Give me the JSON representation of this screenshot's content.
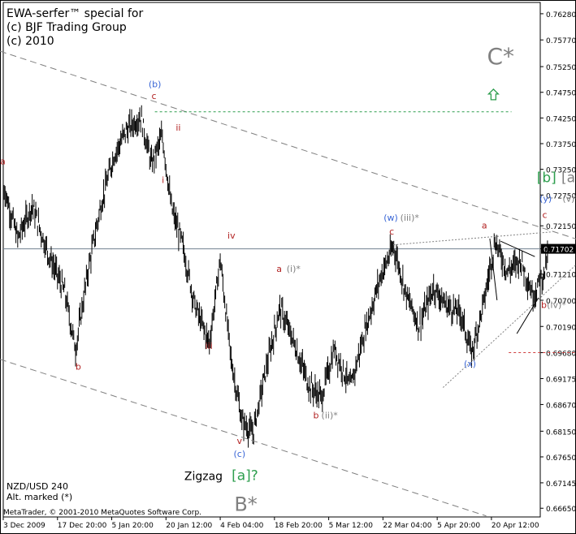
{
  "header": {
    "line1": "EWA-serfer™ special for",
    "line2": "(c) BJF Trading Group",
    "line3": "(c) 2010"
  },
  "footer": {
    "symbol": "NZD/USD 240",
    "alt": "Alt. marked (*)",
    "copyright": "MetaTrader, © 2001-2010 MetaQuotes Software Corp."
  },
  "colors": {
    "red": "#b22222",
    "blue": "#3a66d6",
    "green": "#2e9e4e",
    "gray": "#808080",
    "price": "#000000"
  },
  "chart_data": {
    "type": "line",
    "price_label": "0.71702",
    "last_price": 0.71702,
    "ylim": [
      0.6648,
      0.765
    ],
    "y_ticks": [
      "0.76280",
      "0.75770",
      "0.75250",
      "0.74750",
      "0.74250",
      "0.73750",
      "0.73250",
      "0.72750",
      "0.72150",
      "0.71702",
      "0.71210",
      "0.70700",
      "0.70190",
      "0.69680",
      "0.69175",
      "0.68670",
      "0.68150",
      "0.67650",
      "0.67145",
      "0.66650"
    ],
    "x_ticks": [
      "3 Dec 2009",
      "17 Dec 20:00",
      "5 Jan 20:00",
      "20 Jan 12:00",
      "4 Feb 04:00",
      "18 Feb 20:00",
      "5 Mar 12:00",
      "22 Mar 04:00",
      "5 Apr 20:00",
      "20 Apr 12:00"
    ],
    "x_tick_index": [
      0,
      60,
      120,
      180,
      240,
      300,
      360,
      420,
      480,
      540
    ],
    "n_bars": 595,
    "key_points": [
      [
        0,
        0.7295
      ],
      [
        16,
        0.719
      ],
      [
        32,
        0.7255
      ],
      [
        50,
        0.716
      ],
      [
        68,
        0.7085
      ],
      [
        80,
        0.6975
      ],
      [
        94,
        0.713
      ],
      [
        108,
        0.7255
      ],
      [
        122,
        0.735
      ],
      [
        136,
        0.74
      ],
      [
        152,
        0.7428
      ],
      [
        164,
        0.7335
      ],
      [
        176,
        0.739
      ],
      [
        186,
        0.725
      ],
      [
        198,
        0.718
      ],
      [
        212,
        0.706
      ],
      [
        228,
        0.6985
      ],
      [
        240,
        0.715
      ],
      [
        252,
        0.6955
      ],
      [
        264,
        0.6835
      ],
      [
        276,
        0.681
      ],
      [
        290,
        0.693
      ],
      [
        306,
        0.7055
      ],
      [
        322,
        0.6985
      ],
      [
        338,
        0.6905
      ],
      [
        352,
        0.688
      ],
      [
        366,
        0.6975
      ],
      [
        384,
        0.69
      ],
      [
        400,
        0.701
      ],
      [
        418,
        0.712
      ],
      [
        432,
        0.7175
      ],
      [
        446,
        0.708
      ],
      [
        460,
        0.702
      ],
      [
        476,
        0.7095
      ],
      [
        490,
        0.706
      ],
      [
        506,
        0.7045
      ],
      [
        518,
        0.6965
      ],
      [
        532,
        0.707
      ],
      [
        544,
        0.7185
      ],
      [
        558,
        0.7125
      ],
      [
        572,
        0.715
      ],
      [
        586,
        0.708
      ],
      [
        598,
        0.712
      ],
      [
        604,
        0.717
      ]
    ],
    "lines": [
      {
        "name": "upper-channel",
        "style": "dashed",
        "color": "#808080",
        "x1": 0,
        "y1": 0.7555,
        "x2": 665,
        "y2": 0.7175
      },
      {
        "name": "lower-channel",
        "style": "dashed",
        "color": "#808080",
        "x1": 0,
        "y1": 0.6955,
        "x2": 540,
        "y2": 0.665
      },
      {
        "name": "resistance-green",
        "style": "dashed",
        "color": "#2e9e4e",
        "x1": 172,
        "y1": 0.7437,
        "x2": 568,
        "y2": 0.7437
      },
      {
        "name": "support-red",
        "style": "dashed",
        "color": "#d04040",
        "x1": 565,
        "y1": 0.6968,
        "x2": 655,
        "y2": 0.6968
      },
      {
        "name": "triangle-top",
        "style": "dotted",
        "color": "#808080",
        "x1": 437,
        "y1": 0.7178,
        "x2": 612,
        "y2": 0.7203
      },
      {
        "name": "triangle-bottom",
        "style": "dotted",
        "color": "#808080",
        "x1": 492,
        "y1": 0.69,
        "x2": 665,
        "y2": 0.718
      },
      {
        "name": "wedge-a",
        "style": "solid",
        "color": "#000000",
        "x1": 556,
        "y1": 0.7185,
        "x2": 594,
        "y2": 0.7155
      },
      {
        "name": "wedge-b",
        "style": "solid",
        "color": "#000000",
        "x1": 544,
        "y1": 0.719,
        "x2": 552,
        "y2": 0.707
      },
      {
        "name": "wedge-c",
        "style": "solid",
        "color": "#000000",
        "x1": 574,
        "y1": 0.7005,
        "x2": 598,
        "y2": 0.7075
      }
    ],
    "annotations": [
      {
        "t": "a",
        "color": "red",
        "x": 3,
        "y": 0.7335,
        "size": 11
      },
      {
        "t": "b",
        "color": "red",
        "x": 87,
        "y": 0.6935,
        "size": 11
      },
      {
        "t": "(b)",
        "color": "blue",
        "x": 172,
        "y": 0.7485,
        "size": 11
      },
      {
        "t": "c",
        "color": "red",
        "x": 171,
        "y": 0.7462,
        "size": 11
      },
      {
        "t": "ii",
        "color": "red",
        "x": 198,
        "y": 0.74,
        "size": 11
      },
      {
        "t": "i",
        "color": "red",
        "x": 181,
        "y": 0.7298,
        "size": 11
      },
      {
        "t": "iv",
        "color": "red",
        "x": 257,
        "y": 0.719,
        "size": 11
      },
      {
        "t": "iii",
        "color": "red",
        "x": 232,
        "y": 0.6975,
        "size": 11
      },
      {
        "t": "v",
        "color": "red",
        "x": 266,
        "y": 0.679,
        "size": 11
      },
      {
        "t": "(c)",
        "color": "blue",
        "x": 266,
        "y": 0.6765,
        "size": 11
      },
      {
        "t": "a",
        "color": "red",
        "x": 310,
        "y": 0.7125,
        "size": 11
      },
      {
        "t": "(i)*",
        "color": "gray",
        "x": 326,
        "y": 0.7125,
        "size": 11
      },
      {
        "t": "b",
        "color": "red",
        "x": 351,
        "y": 0.684,
        "size": 11
      },
      {
        "t": "(ii)*",
        "color": "gray",
        "x": 366,
        "y": 0.684,
        "size": 11
      },
      {
        "t": "(w)",
        "color": "blue",
        "x": 434,
        "y": 0.7225,
        "size": 11
      },
      {
        "t": "(iii)*",
        "color": "gray",
        "x": 455,
        "y": 0.7225,
        "size": 11
      },
      {
        "t": "c",
        "color": "red",
        "x": 435,
        "y": 0.7198,
        "size": 11
      },
      {
        "t": "a",
        "color": "red",
        "x": 538,
        "y": 0.721,
        "size": 11
      },
      {
        "t": "(y)",
        "color": "blue",
        "x": 606,
        "y": 0.7262,
        "size": 11
      },
      {
        "t": "(v)*",
        "color": "gray",
        "x": 634,
        "y": 0.7262,
        "size": 11
      },
      {
        "t": "c",
        "color": "red",
        "x": 605,
        "y": 0.723,
        "size": 11
      },
      {
        "t": "b",
        "color": "red",
        "x": 604,
        "y": 0.7055,
        "size": 11
      },
      {
        "t": "(iv)*",
        "color": "gray",
        "x": 618,
        "y": 0.7055,
        "size": 11
      },
      {
        "t": "(x)",
        "color": "blue",
        "x": 522,
        "y": 0.694,
        "size": 11
      },
      {
        "t": "C*",
        "color": "gray",
        "x": 556,
        "y": 0.753,
        "size": 28
      },
      {
        "t": "[b]",
        "color": "green",
        "x": 607,
        "y": 0.73,
        "size": 17
      },
      {
        "t": "[a]*",
        "color": "gray",
        "x": 638,
        "y": 0.73,
        "size": 17
      },
      {
        "t": "Zigzag",
        "color": "black",
        "x": 226,
        "y": 0.672,
        "size": 14
      },
      {
        "t": "[a]?",
        "color": "green",
        "x": 272,
        "y": 0.672,
        "size": 17
      },
      {
        "t": "B*",
        "color": "gray",
        "x": 273,
        "y": 0.666,
        "size": 24
      }
    ],
    "markers": [
      {
        "name": "up-arrow-icon",
        "color": "green",
        "x": 548,
        "y": 0.747
      }
    ]
  }
}
